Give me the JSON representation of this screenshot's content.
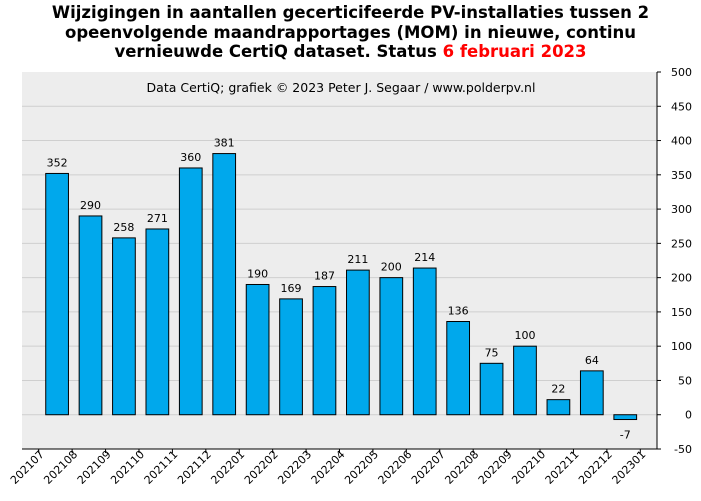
{
  "chart_data": {
    "type": "bar",
    "title": {
      "line1": "Wijzigingen  in aantallen gecerticifeerde PV-installaties  tussen 2",
      "line2": "opeenvolgende maandrapportages (MOM) in nieuwe, continu",
      "line3_main": "vernieuwde CertiQ dataset. Status ",
      "line3_date": "6 februari 2023"
    },
    "annotation": "Data CertiQ; grafiek © 2023 Peter J. Segaar / www.polderpv.nl",
    "categories": [
      "202107",
      "202108",
      "202109",
      "202110",
      "202111",
      "202112",
      "202201",
      "202202",
      "202203",
      "202204",
      "202205",
      "202206",
      "202207",
      "202208",
      "202209",
      "202210",
      "202211",
      "202212",
      "202301"
    ],
    "values": [
      null,
      352,
      290,
      258,
      271,
      360,
      381,
      190,
      169,
      187,
      211,
      200,
      214,
      136,
      75,
      100,
      22,
      64,
      -7
    ],
    "value_labels": [
      "",
      "352",
      "290",
      "258",
      "271",
      "360",
      "381",
      "190",
      "169",
      "187",
      "211",
      "200",
      "214",
      "136",
      "75",
      "100",
      "22",
      "64",
      "-7"
    ],
    "ylim": [
      -50,
      500
    ],
    "yticks": [
      "-50",
      "0",
      "50",
      "100",
      "150",
      "200",
      "250",
      "300",
      "350",
      "400",
      "450",
      "500"
    ],
    "y_axis_side": "right",
    "grid": true,
    "colors": {
      "bar": "#00a8ec",
      "plot_background": "#ededed",
      "title_highlight": "#ff0000"
    }
  }
}
